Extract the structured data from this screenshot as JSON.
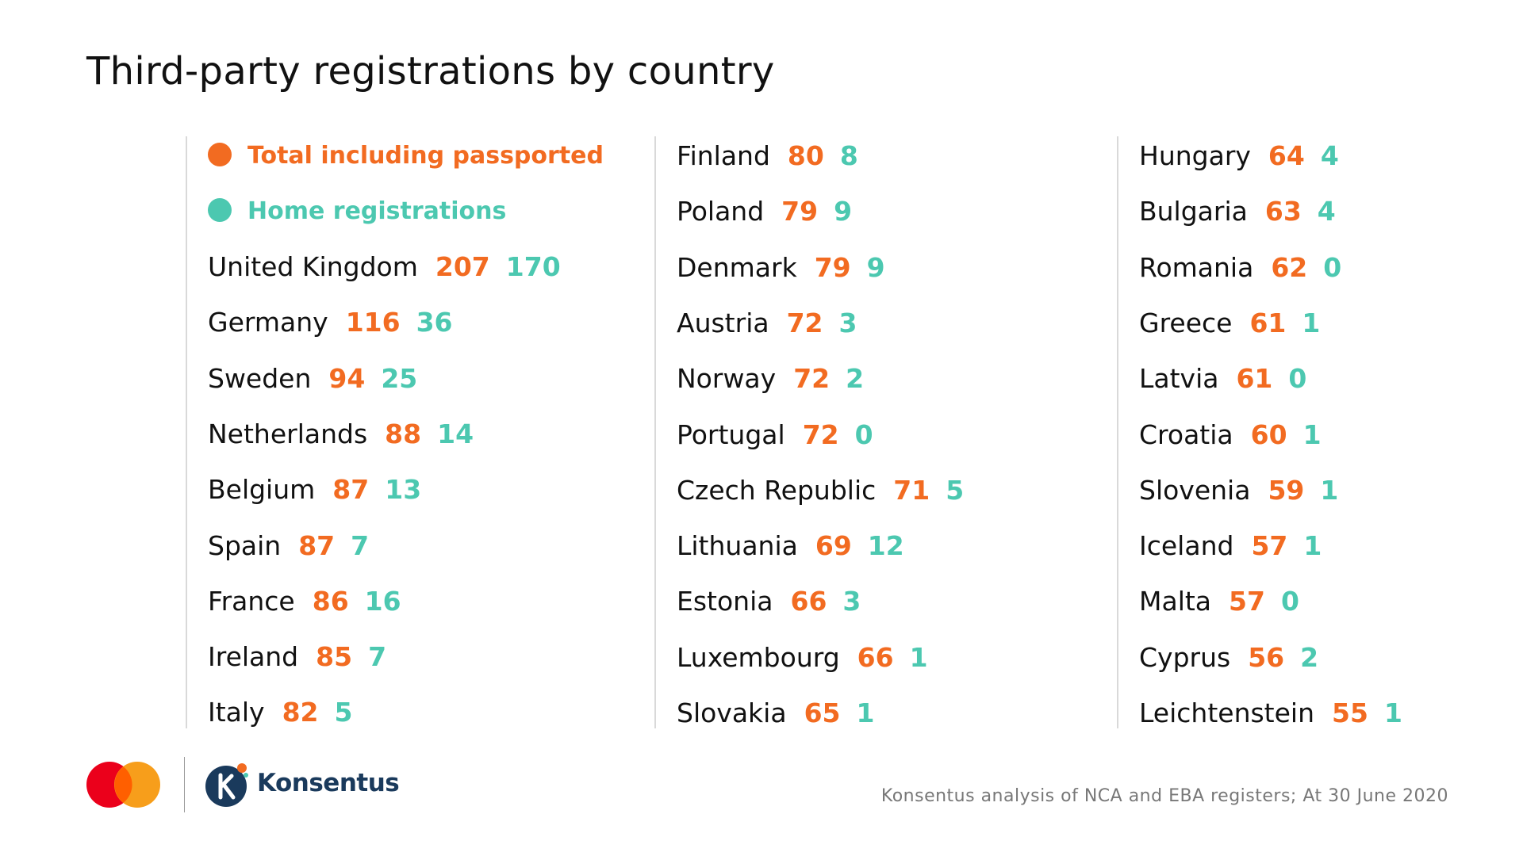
{
  "header": {
    "title": "Third-party registrations by country"
  },
  "legend": {
    "total_label": "Total including passported",
    "home_label": "Home registrations"
  },
  "colors": {
    "total": "#f26b21",
    "home": "#4cc8b0"
  },
  "chart_data": {
    "type": "table",
    "title": "Third-party registrations by country",
    "series": [
      {
        "name": "Total including passported"
      },
      {
        "name": "Home registrations"
      }
    ],
    "columns": [
      [
        {
          "country": "United Kingdom",
          "total": "207",
          "home": "170"
        },
        {
          "country": "Germany",
          "total": "116",
          "home": "36"
        },
        {
          "country": "Sweden",
          "total": "94",
          "home": "25"
        },
        {
          "country": "Netherlands",
          "total": "88",
          "home": "14"
        },
        {
          "country": "Belgium",
          "total": "87",
          "home": "13"
        },
        {
          "country": "Spain",
          "total": "87",
          "home": "7"
        },
        {
          "country": "France",
          "total": "86",
          "home": "16"
        },
        {
          "country": "Ireland",
          "total": "85",
          "home": "7"
        },
        {
          "country": "Italy",
          "total": "82",
          "home": "5"
        }
      ],
      [
        {
          "country": "Finland",
          "total": "80",
          "home": "8"
        },
        {
          "country": "Poland",
          "total": "79",
          "home": "9"
        },
        {
          "country": "Denmark",
          "total": "79",
          "home": "9"
        },
        {
          "country": "Austria",
          "total": "72",
          "home": "3"
        },
        {
          "country": "Norway",
          "total": "72",
          "home": "2"
        },
        {
          "country": "Portugal",
          "total": "72",
          "home": "0"
        },
        {
          "country": "Czech Republic",
          "total": "71",
          "home": "5"
        },
        {
          "country": "Lithuania",
          "total": "69",
          "home": "12"
        },
        {
          "country": "Estonia",
          "total": "66",
          "home": "3"
        },
        {
          "country": "Luxembourg",
          "total": "66",
          "home": "1"
        },
        {
          "country": "Slovakia",
          "total": "65",
          "home": "1"
        }
      ],
      [
        {
          "country": "Hungary",
          "total": "64",
          "home": "4"
        },
        {
          "country": "Bulgaria",
          "total": "63",
          "home": "4"
        },
        {
          "country": "Romania",
          "total": "62",
          "home": "0"
        },
        {
          "country": "Greece",
          "total": "61",
          "home": "1"
        },
        {
          "country": "Latvia",
          "total": "61",
          "home": "0"
        },
        {
          "country": "Croatia",
          "total": "60",
          "home": "1"
        },
        {
          "country": "Slovenia",
          "total": "59",
          "home": "1"
        },
        {
          "country": "Iceland",
          "total": "57",
          "home": "1"
        },
        {
          "country": "Malta",
          "total": "57",
          "home": "0"
        },
        {
          "country": "Cyprus",
          "total": "56",
          "home": "2"
        },
        {
          "country": "Leichtenstein",
          "total": "55",
          "home": "1"
        }
      ]
    ]
  },
  "footer": {
    "source": "Konsentus analysis of NCA and EBA registers; At 30 June 2020",
    "brand_name": "Konsentus",
    "icons": [
      "mastercard-logo-icon",
      "konsentus-logo-icon"
    ]
  }
}
